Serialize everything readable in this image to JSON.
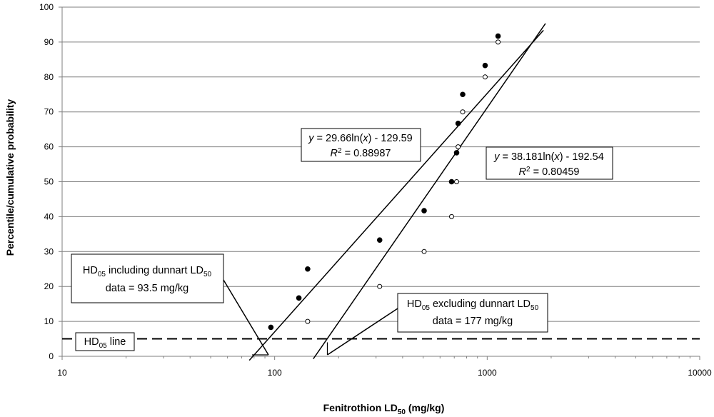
{
  "chart_data": {
    "type": "scatter",
    "xscale": "log",
    "xlim": [
      10,
      10000
    ],
    "ylim": [
      0,
      100
    ],
    "grid": true,
    "x_tick_labels": [
      "10",
      "100",
      "1000",
      "10000"
    ],
    "x_tick_values": [
      10,
      100,
      1000,
      10000
    ],
    "y_tick_labels": [
      "0",
      "10",
      "20",
      "30",
      "40",
      "50",
      "60",
      "70",
      "80",
      "90",
      "100"
    ],
    "y_tick_values": [
      0,
      10,
      20,
      30,
      40,
      50,
      60,
      70,
      80,
      90,
      100
    ],
    "xlabel": {
      "main": "Fenitrothion LD",
      "sub": "50",
      "unit": " (mg/kg)"
    },
    "ylabel": "Percentile/cumulative probability",
    "series": [
      {
        "marker": "filled-circle",
        "color": "#000000",
        "points": [
          [
            96,
            8.3
          ],
          [
            130,
            16.7
          ],
          [
            143,
            25.0
          ],
          [
            312,
            33.3
          ],
          [
            505,
            41.7
          ],
          [
            680,
            50.0
          ],
          [
            718,
            58.3
          ],
          [
            730,
            66.7
          ],
          [
            767,
            75.0
          ],
          [
            978,
            83.3
          ],
          [
            1125,
            91.7
          ]
        ]
      },
      {
        "marker": "open-circle",
        "color": "#000000",
        "points": [
          [
            143,
            10
          ],
          [
            312,
            20
          ],
          [
            505,
            30
          ],
          [
            680,
            40
          ],
          [
            718,
            50
          ],
          [
            730,
            60
          ],
          [
            767,
            70
          ],
          [
            978,
            80
          ],
          [
            1125,
            90
          ]
        ]
      }
    ],
    "trendlines": [
      {
        "a": 29.66,
        "b": -129.59,
        "x_range": [
          76,
          1840
        ],
        "label_line1_value": " = 29.66ln(",
        "label_line1_end": ") - 129.59",
        "label_line2_value": " = 0.88987"
      },
      {
        "a": 38.181,
        "b": -192.54,
        "x_range": [
          152,
          1880
        ],
        "label_line1_value": " = 38.181ln(",
        "label_line1_end": ") - 192.54",
        "label_line2_value": " = 0.80459"
      }
    ],
    "hd05_line": {
      "y": 5,
      "style": "dashed",
      "label": "HD",
      "label_sub": "05",
      "label_end": " line"
    },
    "annotations": [
      {
        "line1_pre": "HD",
        "line1_sub": "05",
        "line1_mid": " including dunnart LD",
        "line1_sub2": "50",
        "line2": "data = 93.5 mg/kg",
        "target_x": 93.5
      },
      {
        "line1_pre": "HD",
        "line1_sub": "05",
        "line1_mid": " excluding dunnart LD",
        "line1_sub2": "50",
        "line2": "data = 177 mg/kg",
        "target_x": 177
      }
    ],
    "eq_symbols": {
      "y": "y",
      "x": "x",
      "r": "R",
      "r_sup": "2"
    }
  }
}
